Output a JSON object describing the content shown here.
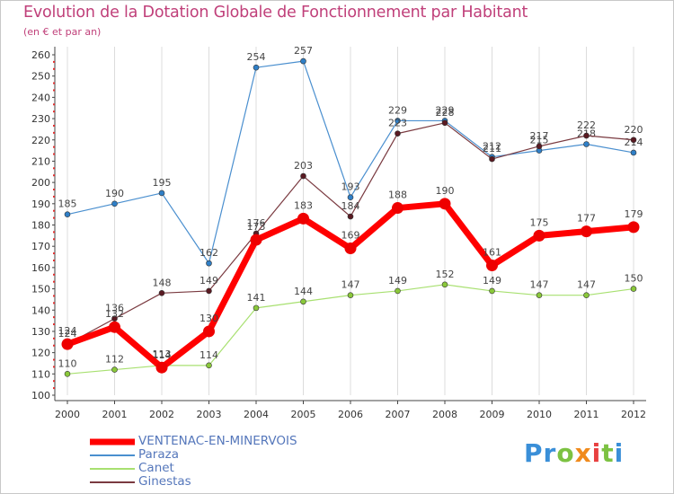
{
  "title": "Evolution de la Dotation Globale de Fonctionnement par Habitant",
  "subtitle": "(en € et par an)",
  "logo": {
    "letters": [
      "P",
      "r",
      "o",
      "x",
      "i",
      "t",
      "i"
    ]
  },
  "chart_data": {
    "type": "line",
    "title": "Evolution de la Dotation Globale de Fonctionnement par Habitant",
    "subtitle": "(en € et par an)",
    "xlabel": "",
    "ylabel": "",
    "ylim": [
      100,
      260
    ],
    "ytick_step": 10,
    "grid": "vertical",
    "legend": "bottom-left",
    "x": [
      "2000",
      "2001",
      "2002",
      "2003",
      "2004",
      "2005",
      "2006",
      "2007",
      "2008",
      "2009",
      "2010",
      "2011",
      "2012"
    ],
    "series": [
      {
        "name": "Paraza",
        "color": "#4a8fcf",
        "dot": "#2f7fc7",
        "width": 1.2,
        "values": [
          185,
          190,
          195,
          162,
          254,
          257,
          193,
          229,
          229,
          212,
          215,
          218,
          214
        ]
      },
      {
        "name": "Ginestas",
        "color": "#7a3a40",
        "dot": "#5a1a22",
        "width": 1.2,
        "values": [
          124,
          136,
          148,
          149,
          176,
          203,
          184,
          223,
          228,
          211,
          217,
          222,
          220
        ]
      },
      {
        "name": "Canet",
        "color": "#a8e070",
        "dot": "#8ac83a",
        "width": 1.2,
        "values": [
          110,
          112,
          114,
          114,
          141,
          144,
          147,
          149,
          152,
          149,
          147,
          147,
          150
        ]
      },
      {
        "name": "VENTENAC-EN-MINERVOIS",
        "color": "#ff0000",
        "dot": "#ee0000",
        "width": 7,
        "values": [
          124,
          132,
          113,
          130,
          173,
          183,
          169,
          188,
          190,
          161,
          175,
          177,
          179
        ]
      }
    ],
    "legend_entries": [
      "VENTENAC-EN-MINERVOIS",
      "Paraza",
      "Canet",
      "Ginestas"
    ]
  }
}
